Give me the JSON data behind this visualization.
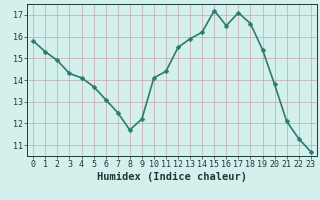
{
  "x": [
    0,
    1,
    2,
    3,
    4,
    5,
    6,
    7,
    8,
    9,
    10,
    11,
    12,
    13,
    14,
    15,
    16,
    17,
    18,
    19,
    20,
    21,
    22,
    23
  ],
  "y": [
    15.8,
    15.3,
    14.9,
    14.3,
    14.1,
    13.7,
    13.1,
    12.5,
    11.7,
    12.2,
    14.1,
    14.4,
    15.5,
    15.9,
    16.2,
    17.2,
    16.5,
    17.1,
    16.6,
    15.4,
    13.8,
    12.1,
    11.3,
    10.7
  ],
  "line_color": "#2d7a6e",
  "marker": "D",
  "marker_size": 2.5,
  "bg_color": "#d4f0ed",
  "grid_major_color": "#c4a8a8",
  "grid_minor_color": "#dcc8c8",
  "xlabel": "Humidex (Indice chaleur)",
  "ylim": [
    10.5,
    17.5
  ],
  "yticks": [
    11,
    12,
    13,
    14,
    15,
    16,
    17
  ],
  "xticks": [
    0,
    1,
    2,
    3,
    4,
    5,
    6,
    7,
    8,
    9,
    10,
    11,
    12,
    13,
    14,
    15,
    16,
    17,
    18,
    19,
    20,
    21,
    22,
    23
  ],
  "line_width": 1.2,
  "font_color": "#1a3a3a",
  "tick_fontsize": 6.0,
  "xlabel_fontsize": 7.5
}
